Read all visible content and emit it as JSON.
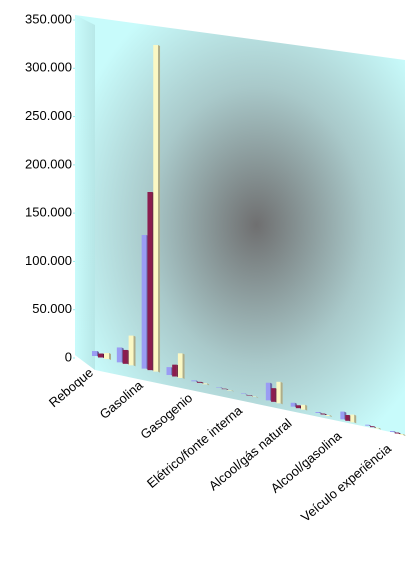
{
  "chart_data": {
    "type": "bar3d",
    "categories": [
      "Reboque",
      null,
      "Gasolina",
      null,
      "Gasogenio",
      null,
      "Elétrico/fonte interna",
      null,
      "Alcool/gás natural",
      null,
      "Alcool/gasolina",
      null,
      "Veículo experiência"
    ],
    "series": [
      {
        "color": "#9a9cf4",
        "values": [
          5000,
          15000,
          135000,
          8000,
          1000,
          500,
          500,
          18000,
          4000,
          1000,
          8000,
          1000,
          1000
        ]
      },
      {
        "color": "#8b1d4e",
        "values": [
          4000,
          14000,
          180000,
          12000,
          1000,
          500,
          500,
          14000,
          3000,
          1000,
          6000,
          1000,
          1000
        ]
      },
      {
        "color": "#fbf8c4",
        "values": [
          6000,
          30000,
          330000,
          25000,
          1000,
          500,
          500,
          22000,
          5000,
          1000,
          8000,
          1000,
          1000
        ]
      }
    ],
    "ylim": [
      0,
      350000
    ],
    "yticks": [
      {
        "value": 0,
        "label": "0"
      },
      {
        "value": 50000,
        "label": "50.000"
      },
      {
        "value": 100000,
        "label": "100.000"
      },
      {
        "value": 150000,
        "label": "150.000"
      },
      {
        "value": 200000,
        "label": "200.000"
      },
      {
        "value": 250000,
        "label": "250.000"
      },
      {
        "value": 300000,
        "label": "300.000"
      },
      {
        "value": 350000,
        "label": "350.000"
      }
    ]
  }
}
